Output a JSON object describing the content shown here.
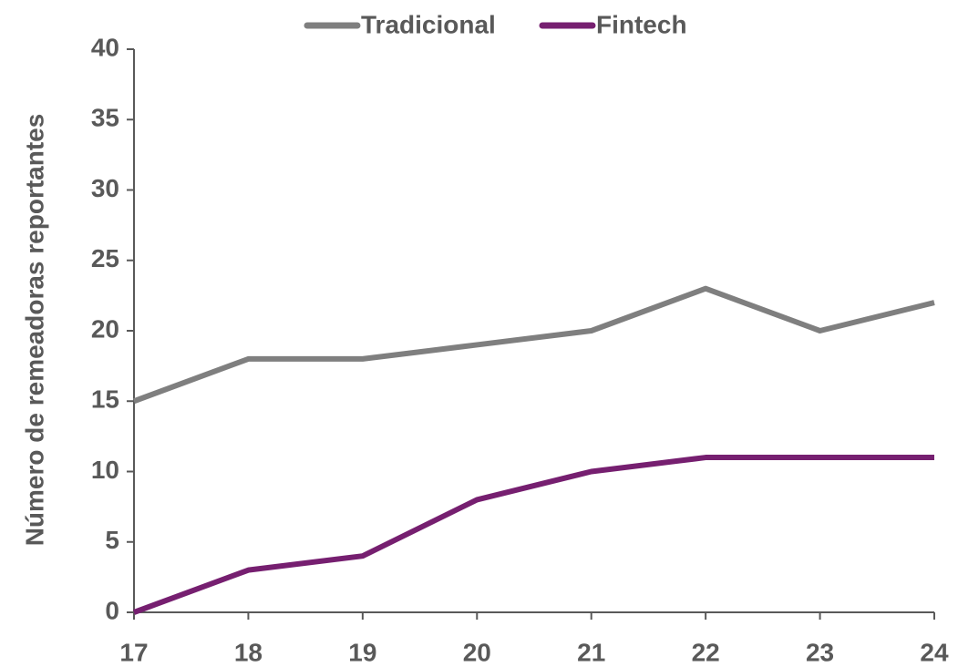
{
  "chart_data": {
    "type": "line",
    "y_label": "Número de remeadoras reportantes",
    "categories": [
      "17",
      "18",
      "19",
      "20",
      "21",
      "22",
      "23",
      "24"
    ],
    "series": [
      {
        "name": "Tradicional",
        "color": "#7f7f7f",
        "values": [
          15,
          18,
          18,
          19,
          20,
          23,
          20,
          22
        ]
      },
      {
        "name": "Fintech",
        "color": "#761f70",
        "values": [
          0,
          3,
          4,
          8,
          10,
          11,
          11,
          11
        ]
      }
    ],
    "ylim": [
      0,
      40
    ],
    "yticks": [
      0,
      5,
      10,
      15,
      20,
      25,
      30,
      35,
      40
    ],
    "legend": "top"
  }
}
